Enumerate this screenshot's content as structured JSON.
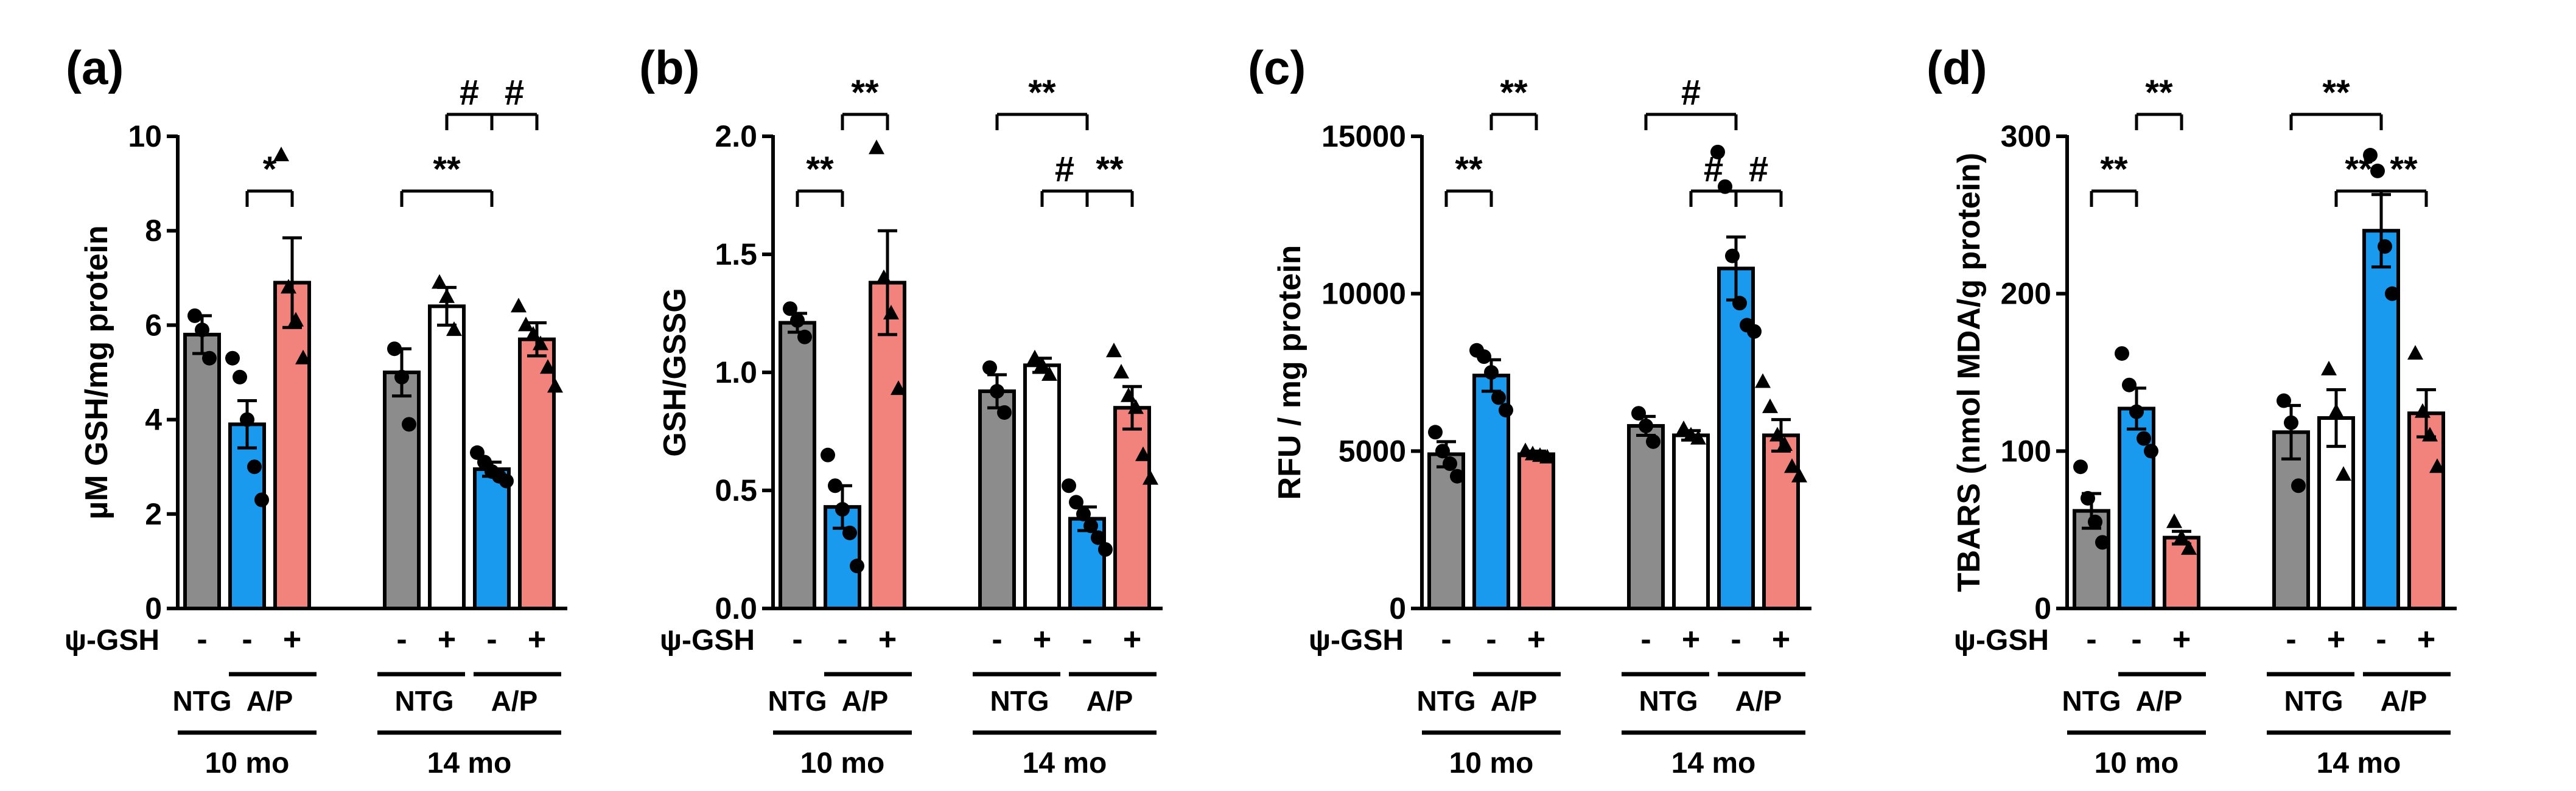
{
  "colors": {
    "ntg": "#8c8c8c",
    "ap": "#1a9aef",
    "ap_psi": "#f2827c",
    "ntg14_psi": "#ffffff",
    "stroke": "#000000"
  },
  "chart_data": [
    {
      "panel": "(a)",
      "type": "bar",
      "ylabel": "µM GSH/mg protein",
      "ylim": [
        0,
        10
      ],
      "yticks": [
        0,
        2,
        4,
        6,
        8,
        10
      ],
      "ytick_labels": [
        "0",
        "2",
        "4",
        "6",
        "8",
        "10"
      ],
      "treatment_label": "ψ-GSH",
      "series": [
        {
          "group": "10 mo",
          "genotype": "NTG",
          "psi": "-",
          "mean": 5.8,
          "sem": 0.4,
          "points": [
            6.2,
            5.9,
            5.3
          ],
          "marker": "circle"
        },
        {
          "group": "10 mo",
          "genotype": "A/P",
          "psi": "-",
          "mean": 3.9,
          "sem": 0.5,
          "points": [
            5.3,
            4.9,
            4.0,
            3.0,
            2.3
          ],
          "marker": "circle"
        },
        {
          "group": "10 mo",
          "genotype": "A/P",
          "psi": "+",
          "mean": 6.9,
          "sem": 0.95,
          "points": [
            9.6,
            6.8,
            6.1,
            5.3
          ],
          "marker": "triangle"
        },
        {
          "group": "14 mo",
          "genotype": "NTG",
          "psi": "-",
          "mean": 5.0,
          "sem": 0.5,
          "points": [
            5.5,
            4.9,
            3.9
          ],
          "marker": "circle"
        },
        {
          "group": "14 mo",
          "genotype": "NTG",
          "psi": "+",
          "mean": 6.4,
          "sem": 0.4,
          "points": [
            6.9,
            6.6,
            5.9
          ],
          "marker": "triangle"
        },
        {
          "group": "14 mo",
          "genotype": "A/P",
          "psi": "-",
          "mean": 2.95,
          "sem": 0.15,
          "points": [
            3.3,
            3.1,
            2.9,
            2.8,
            2.7
          ],
          "marker": "circle"
        },
        {
          "group": "14 mo",
          "genotype": "A/P",
          "psi": "+",
          "mean": 5.7,
          "sem": 0.35,
          "points": [
            6.4,
            6.0,
            5.8,
            5.6,
            5.1,
            4.7
          ],
          "marker": "triangle"
        }
      ],
      "significance": [
        {
          "from": 1,
          "to": 2,
          "label": "*",
          "level": 1
        },
        {
          "from": 3,
          "to": 5,
          "label": "**",
          "level": 1
        },
        {
          "from": 4,
          "to": 5,
          "label": "#",
          "level": 2
        },
        {
          "from": 5,
          "to": 6,
          "label": "#",
          "level": 2
        }
      ]
    },
    {
      "panel": "(b)",
      "type": "bar",
      "ylabel": "GSH/GSSG",
      "ylim": [
        0,
        2.0
      ],
      "yticks": [
        0,
        0.5,
        1.0,
        1.5,
        2.0
      ],
      "ytick_labels": [
        "0.0",
        "0.5",
        "1.0",
        "1.5",
        "2.0"
      ],
      "treatment_label": "ψ-GSH",
      "series": [
        {
          "group": "10 mo",
          "genotype": "NTG",
          "psi": "-",
          "mean": 1.21,
          "sem": 0.04,
          "points": [
            1.27,
            1.22,
            1.15
          ],
          "marker": "circle"
        },
        {
          "group": "10 mo",
          "genotype": "A/P",
          "psi": "-",
          "mean": 0.43,
          "sem": 0.09,
          "points": [
            0.65,
            0.52,
            0.42,
            0.32,
            0.18
          ],
          "marker": "circle"
        },
        {
          "group": "10 mo",
          "genotype": "A/P",
          "psi": "+",
          "mean": 1.38,
          "sem": 0.22,
          "points": [
            1.95,
            1.4,
            1.25,
            0.93
          ],
          "marker": "triangle"
        },
        {
          "group": "14 mo",
          "genotype": "NTG",
          "psi": "-",
          "mean": 0.92,
          "sem": 0.07,
          "points": [
            1.02,
            0.92,
            0.83
          ],
          "marker": "circle"
        },
        {
          "group": "14 mo",
          "genotype": "NTG",
          "psi": "+",
          "mean": 1.03,
          "sem": 0.03,
          "points": [
            1.06,
            1.03,
            0.99
          ],
          "marker": "triangle"
        },
        {
          "group": "14 mo",
          "genotype": "A/P",
          "psi": "-",
          "mean": 0.38,
          "sem": 0.05,
          "points": [
            0.52,
            0.45,
            0.4,
            0.35,
            0.3,
            0.25
          ],
          "marker": "circle"
        },
        {
          "group": "14 mo",
          "genotype": "A/P",
          "psi": "+",
          "mean": 0.85,
          "sem": 0.09,
          "points": [
            1.09,
            1.0,
            0.9,
            0.85,
            0.65,
            0.55
          ],
          "marker": "triangle"
        }
      ],
      "significance": [
        {
          "from": 0,
          "to": 1,
          "label": "**",
          "level": 1
        },
        {
          "from": 1,
          "to": 2,
          "label": "**",
          "level": 2
        },
        {
          "from": 3,
          "to": 5,
          "label": "**",
          "level": 2
        },
        {
          "from": 4,
          "to": 5,
          "label": "#",
          "level": 1
        },
        {
          "from": 5,
          "to": 6,
          "label": "**",
          "level": 1
        }
      ]
    },
    {
      "panel": "(c)",
      "type": "bar",
      "ylabel": "RFU / mg protein",
      "ylim": [
        0,
        15000
      ],
      "yticks": [
        0,
        5000,
        10000,
        15000
      ],
      "ytick_labels": [
        "0",
        "5000",
        "10000",
        "15000"
      ],
      "treatment_label": "ψ-GSH",
      "series": [
        {
          "group": "10 mo",
          "genotype": "NTG",
          "psi": "-",
          "mean": 4900,
          "sem": 400,
          "points": [
            5600,
            5000,
            4600,
            4200
          ],
          "marker": "circle"
        },
        {
          "group": "10 mo",
          "genotype": "A/P",
          "psi": "-",
          "mean": 7400,
          "sem": 500,
          "points": [
            8200,
            8000,
            7500,
            6700,
            6300
          ],
          "marker": "circle"
        },
        {
          "group": "10 mo",
          "genotype": "A/P",
          "psi": "+",
          "mean": 4900,
          "sem": 100,
          "points": [
            5000,
            4900,
            4850,
            4800
          ],
          "marker": "triangle"
        },
        {
          "group": "14 mo",
          "genotype": "NTG",
          "psi": "-",
          "mean": 5800,
          "sem": 300,
          "points": [
            6200,
            5800,
            5300
          ],
          "marker": "circle"
        },
        {
          "group": "14 mo",
          "genotype": "NTG",
          "psi": "+",
          "mean": 5500,
          "sem": 150,
          "points": [
            5700,
            5500,
            5400
          ],
          "marker": "triangle"
        },
        {
          "group": "14 mo",
          "genotype": "A/P",
          "psi": "-",
          "mean": 10800,
          "sem": 1000,
          "points": [
            14500,
            13400,
            11200,
            9700,
            9000,
            8800
          ],
          "marker": "circle"
        },
        {
          "group": "14 mo",
          "genotype": "A/P",
          "psi": "+",
          "mean": 5500,
          "sem": 500,
          "points": [
            7200,
            6400,
            5500,
            5200,
            4500,
            4200
          ],
          "marker": "triangle"
        }
      ],
      "significance": [
        {
          "from": 0,
          "to": 1,
          "label": "**",
          "level": 1
        },
        {
          "from": 1,
          "to": 2,
          "label": "**",
          "level": 2
        },
        {
          "from": 3,
          "to": 5,
          "label": "#",
          "level": 2
        },
        {
          "from": 4,
          "to": 5,
          "label": "#",
          "level": 1
        },
        {
          "from": 5,
          "to": 6,
          "label": "#",
          "level": 1
        }
      ]
    },
    {
      "panel": "(d)",
      "type": "bar",
      "ylabel": "TBARS (nmol MDA/g protein)",
      "ylim": [
        0,
        300
      ],
      "yticks": [
        0,
        100,
        200,
        300
      ],
      "ytick_labels": [
        "0",
        "100",
        "200",
        "300"
      ],
      "treatment_label": "ψ-GSH",
      "series": [
        {
          "group": "10 mo",
          "genotype": "NTG",
          "psi": "-",
          "mean": 62,
          "sem": 11,
          "points": [
            90,
            70,
            55,
            42
          ],
          "marker": "circle"
        },
        {
          "group": "10 mo",
          "genotype": "A/P",
          "psi": "-",
          "mean": 127,
          "sem": 13,
          "points": [
            162,
            142,
            125,
            108,
            100
          ],
          "marker": "circle"
        },
        {
          "group": "10 mo",
          "genotype": "A/P",
          "psi": "+",
          "mean": 45,
          "sem": 4,
          "points": [
            55,
            45,
            38
          ],
          "marker": "triangle"
        },
        {
          "group": "14 mo",
          "genotype": "NTG",
          "psi": "-",
          "mean": 112,
          "sem": 17,
          "points": [
            132,
            118,
            78
          ],
          "marker": "circle"
        },
        {
          "group": "14 mo",
          "genotype": "NTG",
          "psi": "+",
          "mean": 121,
          "sem": 18,
          "points": [
            152,
            125,
            85
          ],
          "marker": "triangle"
        },
        {
          "group": "14 mo",
          "genotype": "A/P",
          "psi": "-",
          "mean": 240,
          "sem": 23,
          "points": [
            288,
            278,
            230,
            200
          ],
          "marker": "circle"
        },
        {
          "group": "14 mo",
          "genotype": "A/P",
          "psi": "+",
          "mean": 124,
          "sem": 15,
          "points": [
            162,
            125,
            110,
            90
          ],
          "marker": "triangle"
        }
      ],
      "significance": [
        {
          "from": 0,
          "to": 1,
          "label": "**",
          "level": 1
        },
        {
          "from": 1,
          "to": 2,
          "label": "**",
          "level": 2
        },
        {
          "from": 3,
          "to": 5,
          "label": "**",
          "level": 2
        },
        {
          "from": 4,
          "to": 5,
          "label": "**",
          "level": 1
        },
        {
          "from": 5,
          "to": 6,
          "label": "**",
          "level": 1
        }
      ]
    }
  ]
}
